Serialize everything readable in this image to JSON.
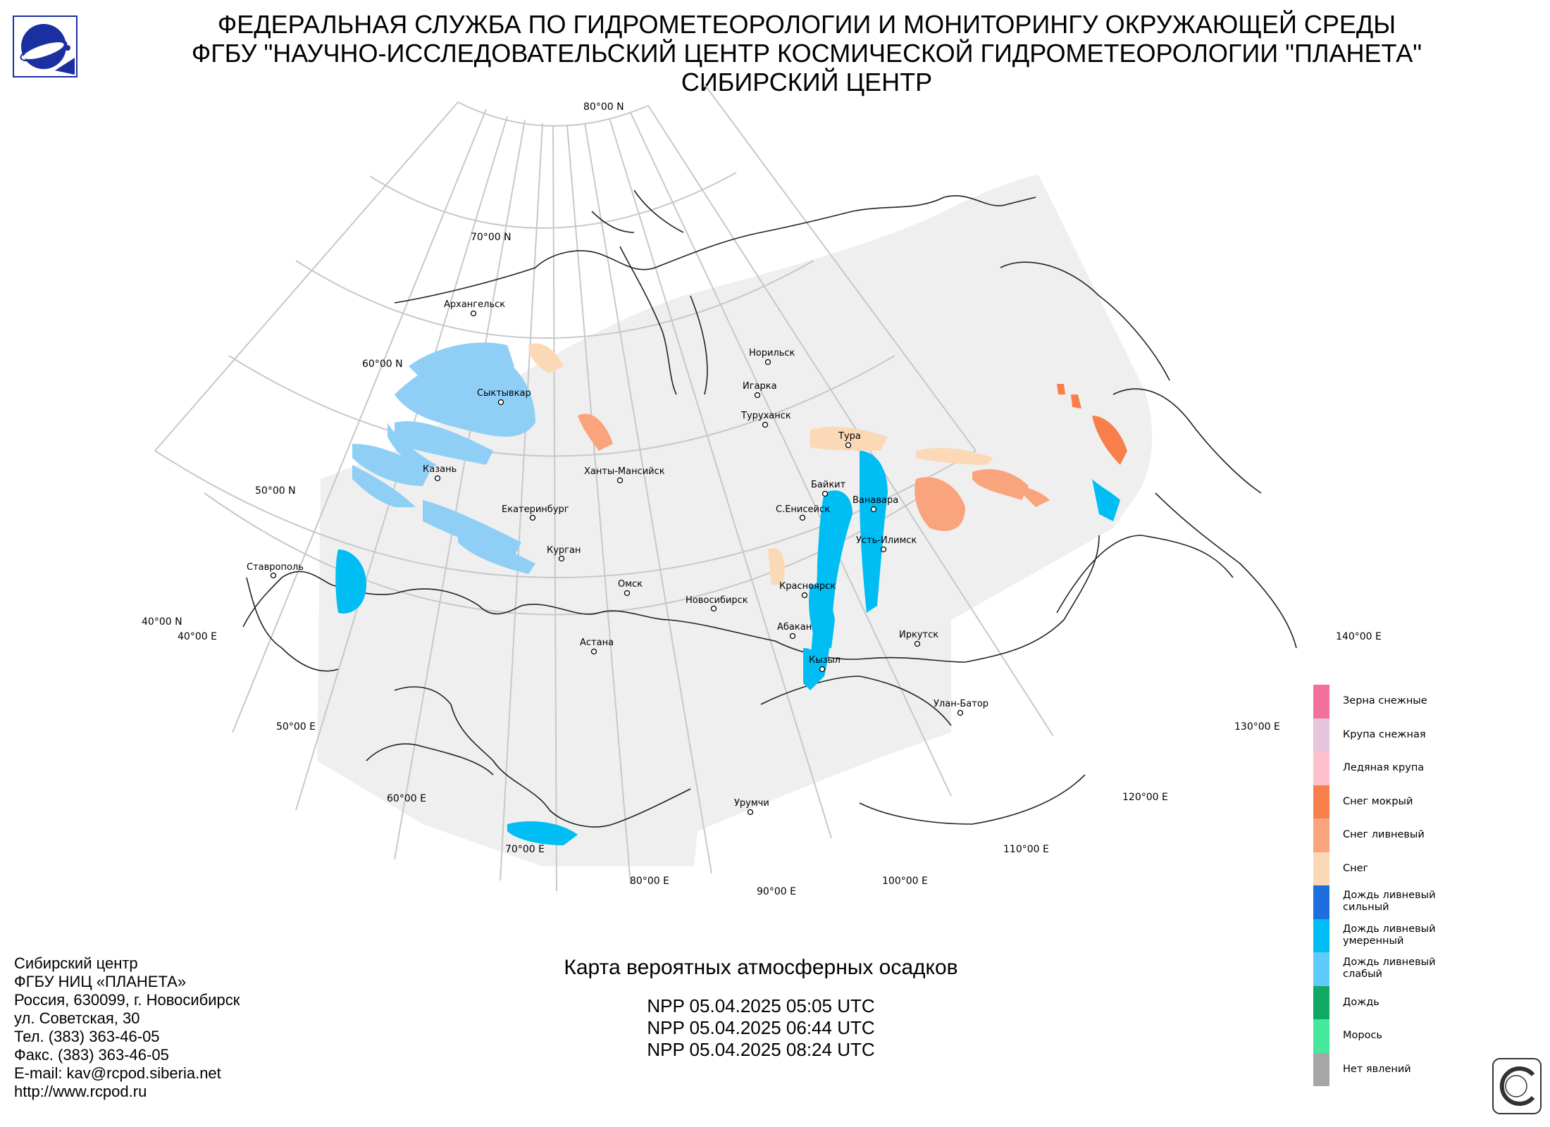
{
  "header": {
    "line1": "ФЕДЕРАЛЬНАЯ СЛУЖБА ПО ГИДРОМЕТЕОРОЛОГИИ И МОНИТОРИНГУ ОКРУЖАЮЩЕЙ СРЕДЫ",
    "line2": "ФГБУ \"НАУЧНО-ИССЛЕДОВАТЕЛЬСКИЙ ЦЕНТР КОСМИЧЕСКОЙ ГИДРОМЕТЕОРОЛОГИИ \"ПЛАНЕТА\"",
    "line3": "СИБИРСКИЙ ЦЕНТР"
  },
  "map": {
    "lat_labels": [
      "80°00 N",
      "70°00 N",
      "60°00 N",
      "50°00 N",
      "40°00 N"
    ],
    "lon_labels": [
      "40°00 E",
      "50°00 E",
      "60°00 E",
      "70°00 E",
      "80°00 E",
      "90°00 E",
      "100°00 E",
      "110°00 E",
      "120°00 E",
      "130°00 E",
      "140°00 E"
    ],
    "cities": [
      {
        "name": "Архангельск"
      },
      {
        "name": "Сыктывкар"
      },
      {
        "name": "Казань"
      },
      {
        "name": "Екатеринбург"
      },
      {
        "name": "Ханты-Мансийск"
      },
      {
        "name": "Курган"
      },
      {
        "name": "Омск"
      },
      {
        "name": "Астана"
      },
      {
        "name": "Новосибирск"
      },
      {
        "name": "Ставрополь"
      },
      {
        "name": "Норильск"
      },
      {
        "name": "Игарка"
      },
      {
        "name": "Туруханск"
      },
      {
        "name": "Тура"
      },
      {
        "name": "Байкит"
      },
      {
        "name": "С.Енисейск"
      },
      {
        "name": "Ванавара"
      },
      {
        "name": "Усть-Илимск"
      },
      {
        "name": "Красноярск"
      },
      {
        "name": "Абакан"
      },
      {
        "name": "Кызыл"
      },
      {
        "name": "Иркутск"
      },
      {
        "name": "Улан-Батор"
      },
      {
        "name": "Урумчи"
      }
    ]
  },
  "legend": {
    "items": [
      {
        "label": "Зерна снежные",
        "color": "#f2709a"
      },
      {
        "label": "Крупа снежная",
        "color": "#e6c4de"
      },
      {
        "label": "Ледяная крупа",
        "color": "#ffc0cc"
      },
      {
        "label": "Снег мокрый",
        "color": "#f97f4a"
      },
      {
        "label": "Снег ливневый",
        "color": "#f9a47c"
      },
      {
        "label": "Снег",
        "color": "#fbd9b6"
      },
      {
        "label": "Дождь ливневый сильный",
        "color": "#1e6ee0"
      },
      {
        "label": "Дождь ливневый умеренный",
        "color": "#00bdf3"
      },
      {
        "label": "Дождь ливневый слабый",
        "color": "#5ecbfa"
      },
      {
        "label": "Дождь",
        "color": "#0fa864"
      },
      {
        "label": "Морось",
        "color": "#45e89c"
      },
      {
        "label": "Нет явлений",
        "color": "#a6a6a6"
      }
    ]
  },
  "contacts": [
    "Сибирский центр",
    "ФГБУ НИЦ «ПЛАНЕТА»",
    "Россия, 630099, г. Новосибирск",
    "ул. Советская, 30",
    "Тел. (383) 363-46-05",
    "Факс. (383) 363-46-05",
    "E-mail: kav@rcpod.siberia.net",
    "http://www.rcpod.ru"
  ],
  "title_block": {
    "title": "Карта вероятных атмосферных осадков",
    "passes": [
      "NPP 05.04.2025  05:05 UTC",
      "NPP 05.04.2025  06:44 UTC",
      "NPP 05.04.2025  08:24 UTC"
    ]
  },
  "colors": {
    "graticule": "#c8c8c8",
    "coverage": "#efefef",
    "border": "#222222"
  }
}
